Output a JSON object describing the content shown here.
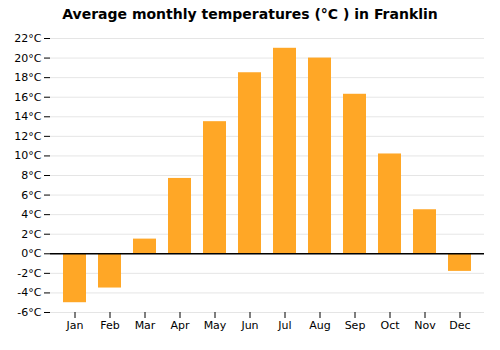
{
  "chart_data": {
    "type": "bar",
    "title": "Average monthly temperatures (°C ) in Franklin",
    "categories": [
      "Jan",
      "Feb",
      "Mar",
      "Apr",
      "May",
      "Jun",
      "Jul",
      "Aug",
      "Sep",
      "Oct",
      "Nov",
      "Dec"
    ],
    "values": [
      -5,
      -3.5,
      1.5,
      7.7,
      13.5,
      18.5,
      21,
      20,
      16.3,
      10.2,
      4.5,
      -1.8
    ],
    "color": "#FFA726",
    "ylim": [
      -6,
      22
    ],
    "yticks": [
      {
        "value": -6,
        "label": "-6°C"
      },
      {
        "value": -4,
        "label": "-4°C"
      },
      {
        "value": -2,
        "label": "-2°C"
      },
      {
        "value": 0,
        "label": "0°C"
      },
      {
        "value": 2,
        "label": "2°C"
      },
      {
        "value": 4,
        "label": "4°C"
      },
      {
        "value": 6,
        "label": "6°C"
      },
      {
        "value": 8,
        "label": "8°C"
      },
      {
        "value": 10,
        "label": "10°C"
      },
      {
        "value": 12,
        "label": "12°C"
      },
      {
        "value": 14,
        "label": "14°C"
      },
      {
        "value": 16,
        "label": "16°C"
      },
      {
        "value": 18,
        "label": "18°C"
      },
      {
        "value": 20,
        "label": "20°C"
      },
      {
        "value": 22,
        "label": "22°C"
      }
    ],
    "grid": true
  }
}
